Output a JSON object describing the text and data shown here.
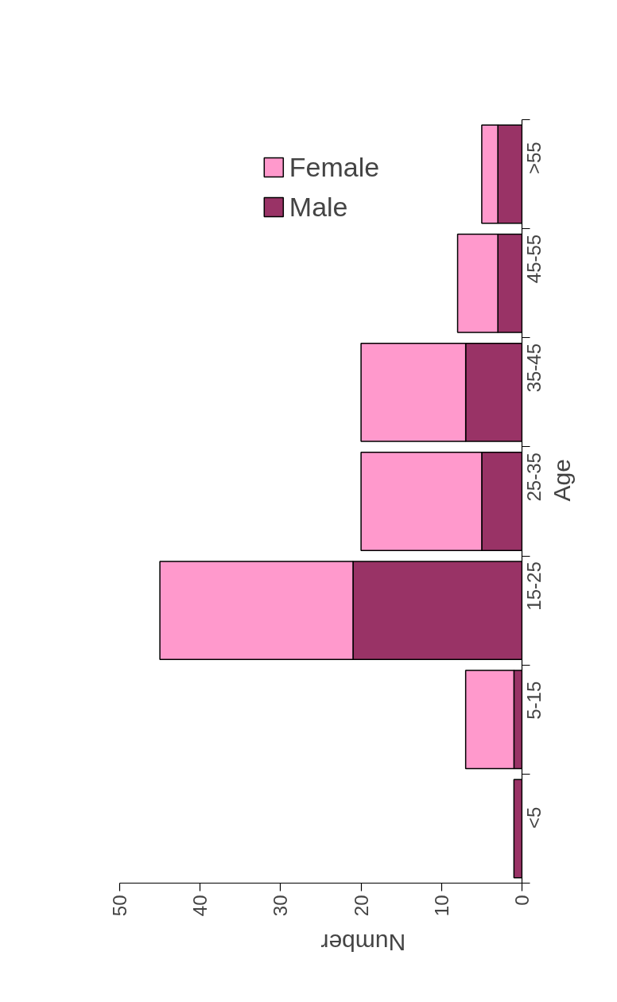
{
  "chart_data": {
    "type": "bar",
    "orientation": "horizontal",
    "stacked": true,
    "xlabel": "Number",
    "ylabel": "Age",
    "categories": [
      ">55",
      "45-55",
      "35-45",
      "25-35",
      "15-25",
      "5-15",
      "<5"
    ],
    "series": [
      {
        "name": "Male",
        "color": "#993366",
        "values": [
          3,
          3,
          7,
          5,
          21,
          1,
          1
        ]
      },
      {
        "name": "Female",
        "color": "#ff99cc",
        "values": [
          2,
          5,
          13,
          15,
          24,
          6,
          0
        ]
      }
    ],
    "xlim": [
      50,
      0
    ],
    "xticks": [
      0,
      10,
      20,
      30,
      40,
      50
    ],
    "grid": false,
    "legend": "top"
  }
}
